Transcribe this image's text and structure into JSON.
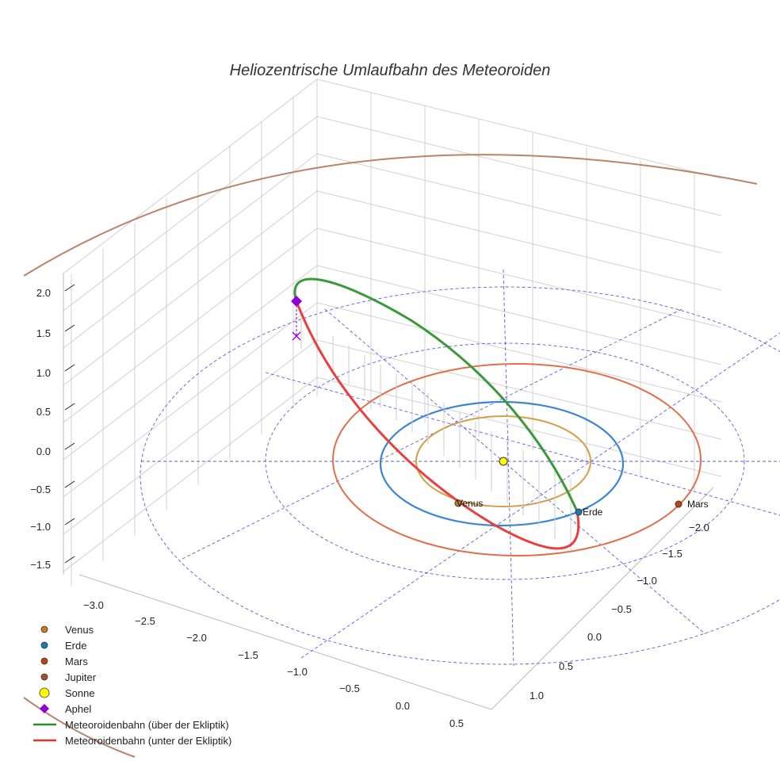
{
  "chart_data": {
    "type": "scatter3d",
    "title": "Heliozentrische Umlaufbahn des Meteoroiden",
    "x_ticks": [
      "−3.0",
      "−2.5",
      "−2.0",
      "−1.5",
      "−1.0",
      "−0.5",
      "0.0",
      "0.5"
    ],
    "y_ticks": [
      "−2.0",
      "−1.5",
      "−1.0",
      "−0.5",
      "0.0",
      "0.5",
      "1.0"
    ],
    "z_ticks": [
      "2.0",
      "1.5",
      "1.0",
      "0.5",
      "0.0",
      "−0.5",
      "−1.0",
      "−1.5"
    ],
    "xlim": [
      -3.2,
      0.6
    ],
    "ylim": [
      -2.3,
      1.2
    ],
    "zlim": [
      -1.6,
      2.2
    ],
    "grid": true,
    "legend_position": "bottom-left",
    "points": [
      {
        "name": "Venus",
        "label": "Venus",
        "color": "#c87d1e"
      },
      {
        "name": "Erde",
        "label": "Erde",
        "color": "#1f77b4"
      },
      {
        "name": "Mars",
        "label": "Mars",
        "color": "#c1440e"
      },
      {
        "name": "Sonne",
        "color": "#ffff00"
      }
    ],
    "orbits": [
      {
        "name": "Venus",
        "radius_au": 0.72,
        "color": "#d4a04a"
      },
      {
        "name": "Erde",
        "radius_au": 1.0,
        "color": "#3a86d4"
      },
      {
        "name": "Mars",
        "radius_au": 1.52,
        "color": "#e0704a"
      },
      {
        "name": "Jupiter",
        "radius_au": 5.2,
        "color": "#b8846a"
      }
    ],
    "legend": [
      {
        "label": "Venus",
        "marker": "circle",
        "color": "#c87d1e"
      },
      {
        "label": "Erde",
        "marker": "circle",
        "color": "#1f77b4"
      },
      {
        "label": "Mars",
        "marker": "circle",
        "color": "#c1440e"
      },
      {
        "label": "Jupiter",
        "marker": "circle",
        "color": "#a0522d"
      },
      {
        "label": "Sonne",
        "marker": "circle-large",
        "color": "#ffff00"
      },
      {
        "label": "Aphel",
        "marker": "diamond",
        "color": "#9400d3"
      },
      {
        "label": "Meteoroidenbahn (über der Ekliptik)",
        "marker": "line",
        "color": "#2a8c2a"
      },
      {
        "label": "Meteoroidenbahn (unter der Ekliptik)",
        "marker": "line",
        "color": "#e8302c"
      }
    ]
  }
}
